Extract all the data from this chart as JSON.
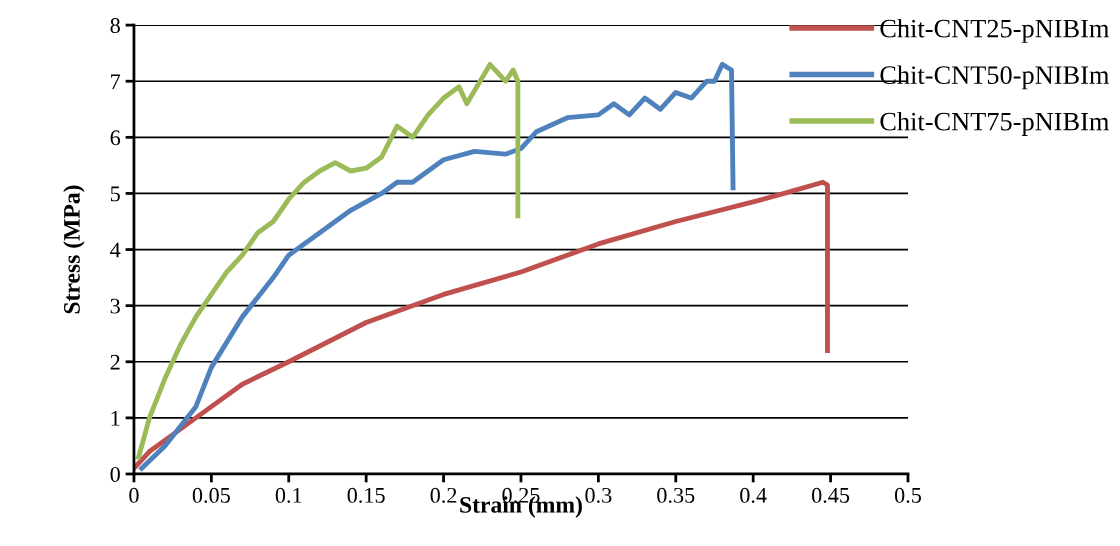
{
  "chart_data": {
    "type": "line",
    "xlabel": "Strain (mm)",
    "ylabel": "Stress (MPa)",
    "xlim": [
      0,
      0.5
    ],
    "xticks": [
      0,
      0.05,
      0.1,
      0.15,
      0.2,
      0.25,
      0.3,
      0.35,
      0.4,
      0.45,
      0.5
    ],
    "ylim": [
      0,
      8
    ],
    "yticks": [
      0,
      1,
      2,
      3,
      4,
      5,
      6,
      7,
      8
    ],
    "grid": "y",
    "legend": "top right",
    "marker": "none",
    "line_style": "solid",
    "series": [
      {
        "name": "Chit-CNT25-pNIBIm",
        "color": "#c0504d",
        "x": [
          0,
          0.01,
          0.03,
          0.05,
          0.07,
          0.1,
          0.15,
          0.2,
          0.25,
          0.3,
          0.35,
          0.4,
          0.42,
          0.445,
          0.448,
          0.448
        ],
        "values": [
          0.1,
          0.4,
          0.8,
          1.2,
          1.6,
          2.0,
          2.7,
          3.2,
          3.6,
          4.1,
          4.5,
          4.85,
          5.0,
          5.2,
          5.15,
          2.2
        ]
      },
      {
        "name": "Chit-CNT50-pNIBIm",
        "color": "#4f81bd",
        "x": [
          0.005,
          0.02,
          0.04,
          0.05,
          0.07,
          0.09,
          0.1,
          0.12,
          0.14,
          0.16,
          0.17,
          0.18,
          0.2,
          0.22,
          0.24,
          0.25,
          0.26,
          0.28,
          0.3,
          0.31,
          0.32,
          0.33,
          0.34,
          0.35,
          0.36,
          0.37,
          0.375,
          0.38,
          0.386,
          0.387
        ],
        "values": [
          0.1,
          0.5,
          1.2,
          1.9,
          2.8,
          3.5,
          3.9,
          4.3,
          4.7,
          5.0,
          5.2,
          5.2,
          5.6,
          5.75,
          5.7,
          5.8,
          6.1,
          6.35,
          6.4,
          6.6,
          6.4,
          6.7,
          6.5,
          6.8,
          6.7,
          7.0,
          7.0,
          7.3,
          7.2,
          5.1
        ]
      },
      {
        "name": "Chit-CNT75-pNIBIm",
        "color": "#9bbb59",
        "x": [
          0.003,
          0.01,
          0.02,
          0.03,
          0.04,
          0.05,
          0.06,
          0.07,
          0.08,
          0.09,
          0.1,
          0.11,
          0.12,
          0.13,
          0.14,
          0.15,
          0.16,
          0.17,
          0.18,
          0.19,
          0.2,
          0.21,
          0.215,
          0.23,
          0.24,
          0.245,
          0.248,
          0.248
        ],
        "values": [
          0.3,
          1.0,
          1.7,
          2.3,
          2.8,
          3.2,
          3.6,
          3.9,
          4.3,
          4.5,
          4.9,
          5.2,
          5.4,
          5.55,
          5.4,
          5.45,
          5.65,
          6.2,
          6.0,
          6.4,
          6.7,
          6.9,
          6.6,
          7.3,
          7.0,
          7.2,
          7.0,
          4.6
        ]
      }
    ]
  }
}
